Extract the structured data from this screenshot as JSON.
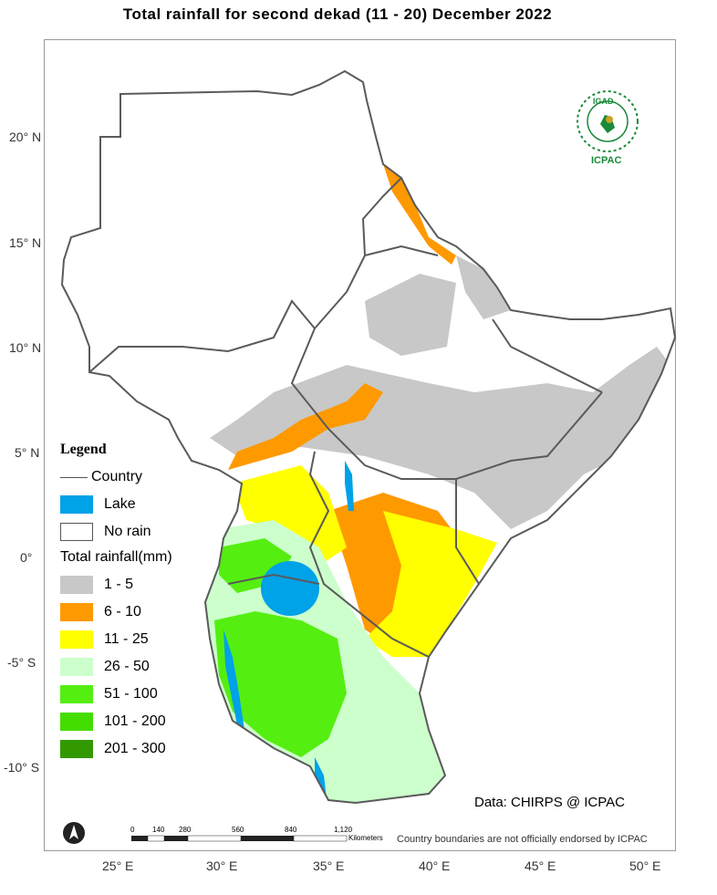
{
  "title": "Total rainfall  for  second  dekad (11 - 20)  December 2022",
  "axes": {
    "lat_labels": [
      "20° N",
      "15° N",
      "10° N",
      "5° N",
      "0°",
      "-5° S",
      "-10° S"
    ],
    "lon_labels": [
      "25° E",
      "30° E",
      "35° E",
      "40° E",
      "45° E",
      "50° E"
    ]
  },
  "legend": {
    "title": "Legend",
    "country_label": "Country",
    "lake_label": "Lake",
    "no_rain_label": "No rain",
    "rain_title": "Total rainfall(mm)",
    "classes": [
      {
        "label": "1 - 5",
        "color": "#c8c8c8"
      },
      {
        "label": "6 - 10",
        "color": "#ff9900"
      },
      {
        "label": "11 - 25",
        "color": "#ffff00"
      },
      {
        "label": "26 - 50",
        "color": "#ccffcc"
      },
      {
        "label": "51 - 100",
        "color": "#55ee11"
      },
      {
        "label": "101 - 200",
        "color": "#44dd00"
      },
      {
        "label": "201 - 300",
        "color": "#339900"
      }
    ],
    "lake_color": "#00a2e8"
  },
  "credit": "Data: CHIRPS @ ICPAC",
  "disclaimer": "Country boundaries are not officially endorsed by ICPAC",
  "scale_bar": {
    "ticks": [
      "0",
      "140",
      "280",
      "560",
      "840",
      "1,120"
    ],
    "unit": "Kilometers"
  },
  "logo": {
    "top": "IGAD",
    "bottom": "ICPAC",
    "color": "#1a8a3a"
  },
  "north_arrow_icon": "north-arrow-icon"
}
